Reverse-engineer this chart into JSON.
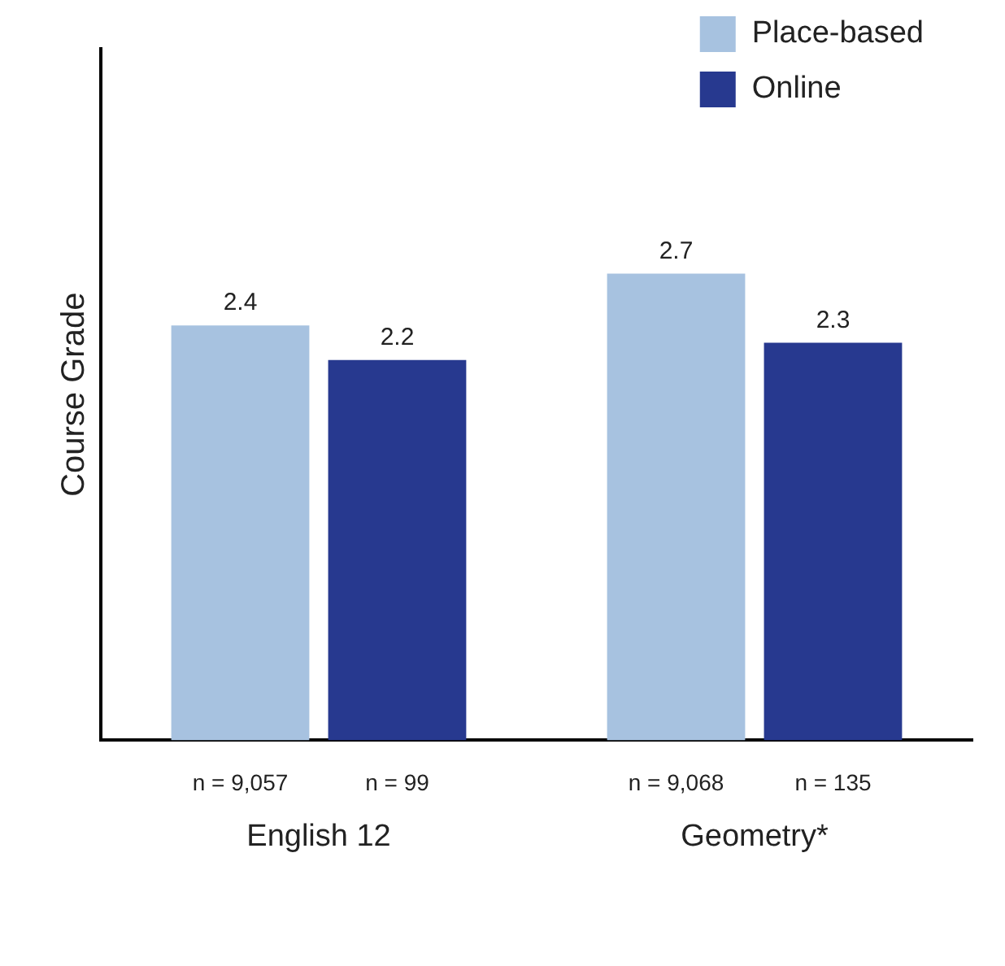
{
  "chart_data": {
    "type": "bar",
    "ylabel": "Course Grade",
    "categories": [
      "English 12",
      "Geometry*"
    ],
    "series": [
      {
        "name": "Place-based",
        "color": "#a7c2e0",
        "values": [
          2.4,
          2.7
        ]
      },
      {
        "name": "Online",
        "color": "#27398f",
        "values": [
          2.2,
          2.3
        ]
      }
    ],
    "data_labels": true,
    "legend": "top right",
    "grid": false,
    "annotations": [
      "n = 9,057",
      "n = 99",
      "n = 9,068",
      "n = 135"
    ]
  }
}
